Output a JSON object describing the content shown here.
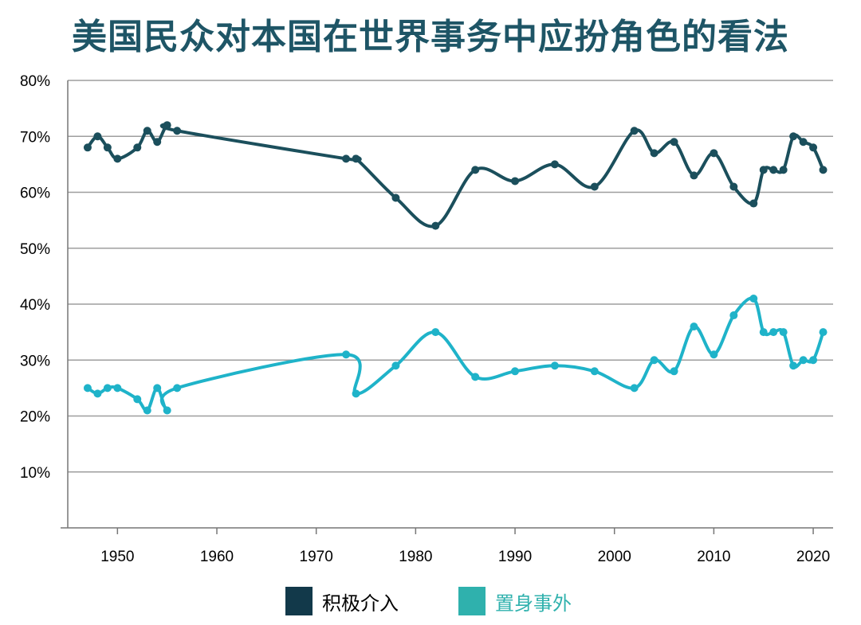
{
  "title": "美国民众对本国在世界事务中应扮角色的看法",
  "chart_data": {
    "type": "line",
    "title": "美国民众对本国在世界事务中应扮角色的看法",
    "xlabel": "",
    "ylabel": "",
    "xlim": [
      1945,
      2022
    ],
    "ylim": [
      0,
      80
    ],
    "y_ticks": [
      "10%",
      "20%",
      "30%",
      "40%",
      "50%",
      "60%",
      "70%",
      "80%"
    ],
    "x_ticks": [
      "1950",
      "1960",
      "1970",
      "1980",
      "1990",
      "2000",
      "2010",
      "2020"
    ],
    "grid": "horizontal",
    "legend_position": "bottom",
    "series": [
      {
        "name": "积极介入",
        "color": "#1b4f5c",
        "points": [
          [
            1947,
            68
          ],
          [
            1948,
            70
          ],
          [
            1949,
            68
          ],
          [
            1950,
            66
          ],
          [
            1952,
            68
          ],
          [
            1953,
            71
          ],
          [
            1954,
            69
          ],
          [
            1955,
            72
          ],
          [
            1956,
            71
          ],
          [
            1973,
            66
          ],
          [
            1974,
            66
          ],
          [
            1978,
            59
          ],
          [
            1982,
            54
          ],
          [
            1986,
            64
          ],
          [
            1990,
            62
          ],
          [
            1994,
            65
          ],
          [
            1998,
            61
          ],
          [
            2002,
            71
          ],
          [
            2004,
            67
          ],
          [
            2006,
            69
          ],
          [
            2008,
            63
          ],
          [
            2010,
            67
          ],
          [
            2012,
            61
          ],
          [
            2014,
            58
          ],
          [
            2015,
            64
          ],
          [
            2016,
            64
          ],
          [
            2017,
            64
          ],
          [
            2018,
            70
          ],
          [
            2019,
            69
          ],
          [
            2020,
            68
          ],
          [
            2021,
            64
          ]
        ]
      },
      {
        "name": "置身事外",
        "color": "#1fb3c9",
        "points": [
          [
            1947,
            25
          ],
          [
            1948,
            24
          ],
          [
            1949,
            25
          ],
          [
            1950,
            25
          ],
          [
            1952,
            23
          ],
          [
            1953,
            21
          ],
          [
            1954,
            25
          ],
          [
            1955,
            21
          ],
          [
            1956,
            25
          ],
          [
            1973,
            31
          ],
          [
            1974,
            24
          ],
          [
            1978,
            29
          ],
          [
            1982,
            35
          ],
          [
            1986,
            27
          ],
          [
            1990,
            28
          ],
          [
            1994,
            29
          ],
          [
            1998,
            28
          ],
          [
            2002,
            25
          ],
          [
            2004,
            30
          ],
          [
            2006,
            28
          ],
          [
            2008,
            36
          ],
          [
            2010,
            31
          ],
          [
            2012,
            38
          ],
          [
            2014,
            41
          ],
          [
            2015,
            35
          ],
          [
            2016,
            35
          ],
          [
            2017,
            35
          ],
          [
            2018,
            29
          ],
          [
            2019,
            30
          ],
          [
            2020,
            30
          ],
          [
            2021,
            35
          ]
        ]
      }
    ]
  },
  "legend": {
    "items": [
      {
        "label": "积极介入",
        "color": "#12394a"
      },
      {
        "label": "置身事外",
        "color": "#2fb1ad"
      }
    ]
  }
}
